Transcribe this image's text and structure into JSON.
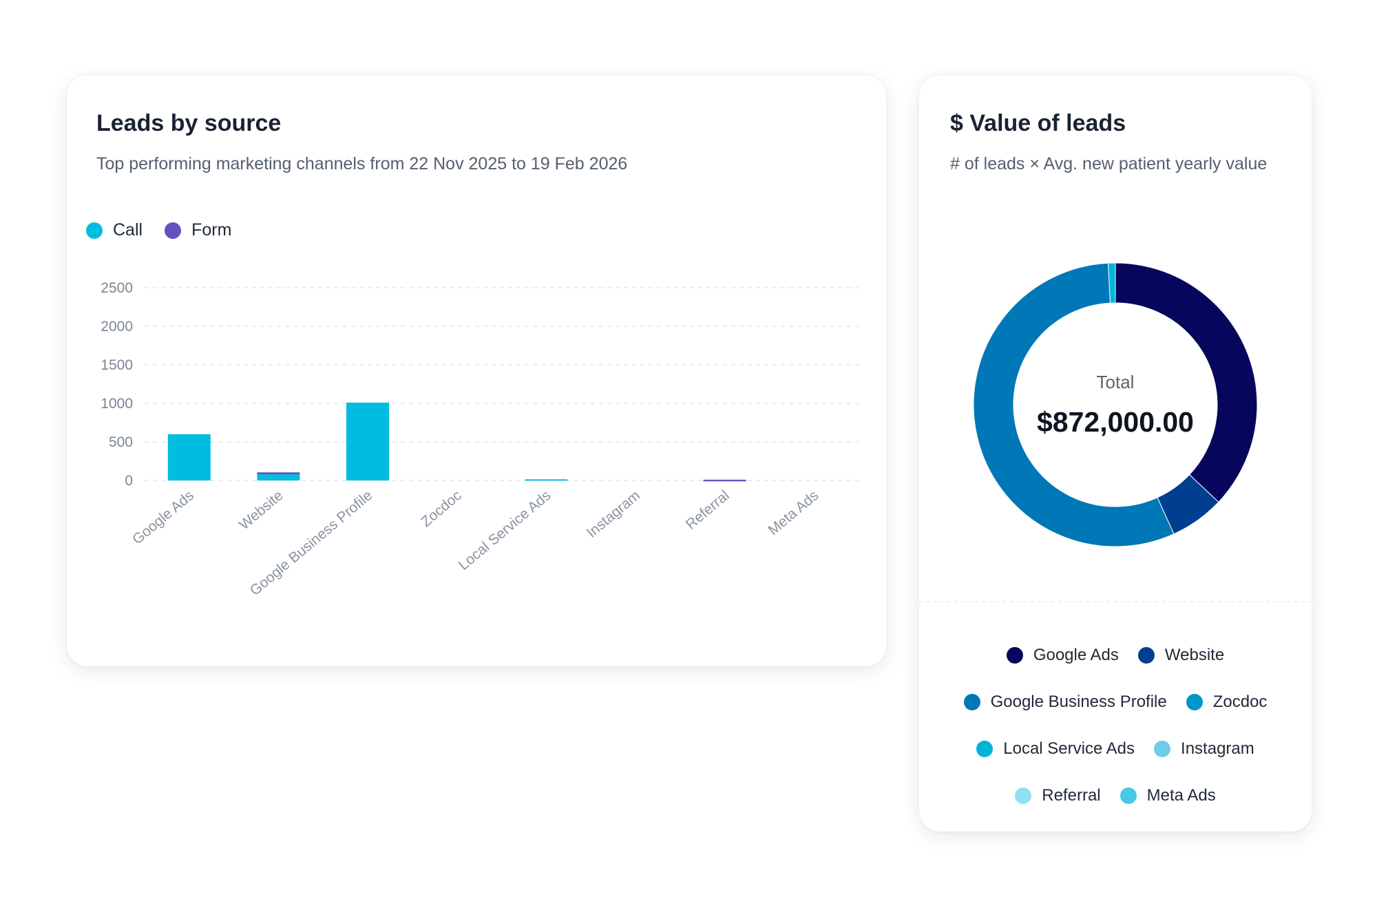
{
  "leads_card": {
    "title": "Leads by source",
    "subtitle": "Top performing marketing channels from 22 Nov 2025 to 19 Feb 2026",
    "legend": [
      {
        "label": "Call",
        "color": "#00bde0"
      },
      {
        "label": "Form",
        "color": "#6650bf"
      }
    ]
  },
  "value_card": {
    "title": "$ Value of leads",
    "subtitle": "# of leads × Avg. new patient yearly value",
    "total_label": "Total",
    "total_value": "$872,000.00"
  },
  "chart_data": [
    {
      "type": "bar",
      "stacked": true,
      "categories": [
        "Google Ads",
        "Website",
        "Google Business Profile",
        "Zocdoc",
        "Local Service Ads",
        "Instagram",
        "Referral",
        "Meta Ads"
      ],
      "series": [
        {
          "name": "Call",
          "color": "#00bde0",
          "values": [
            600,
            80,
            1010,
            0,
            15,
            0,
            5,
            0
          ]
        },
        {
          "name": "Form",
          "color": "#6650bf",
          "values": [
            0,
            25,
            0,
            0,
            0,
            0,
            5,
            0
          ]
        }
      ],
      "ylim": [
        0,
        2500
      ],
      "yticks": [
        0,
        500,
        1000,
        1500,
        2000,
        2500
      ],
      "grid": true,
      "legend_position": "top-left"
    },
    {
      "type": "pie",
      "donut": true,
      "labels": [
        "Google Ads",
        "Website",
        "Google Business Profile",
        "Zocdoc",
        "Local Service Ads",
        "Instagram",
        "Referral",
        "Meta Ads"
      ],
      "colors": [
        "#06065c",
        "#003f8f",
        "#0077b6",
        "#0096c7",
        "#00b4d8",
        "#6fcbea",
        "#90e0ef",
        "#48cae4"
      ],
      "values": [
        323000,
        54000,
        488000,
        0,
        7000,
        0,
        0,
        0
      ],
      "legend_rows": [
        [
          "Google Ads",
          "Website"
        ],
        [
          "Google Business Profile",
          "Zocdoc"
        ],
        [
          "Local Service Ads",
          "Instagram"
        ],
        [
          "Referral",
          "Meta Ads"
        ]
      ],
      "legend_position": "bottom"
    }
  ]
}
